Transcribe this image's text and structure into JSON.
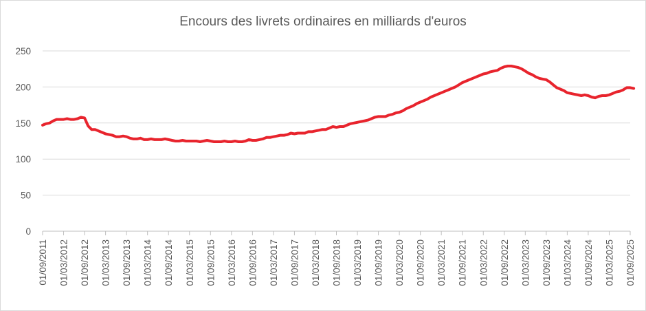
{
  "chart_data": {
    "type": "line",
    "title": "Encours des livrets ordinaires en milliards d'euros",
    "xlabel": "",
    "ylabel": "",
    "ylim": [
      0,
      250
    ],
    "yticks": [
      0,
      50,
      100,
      150,
      200,
      250
    ],
    "xticks": [
      "01/09/2011",
      "01/03/2012",
      "01/09/2012",
      "01/03/2013",
      "01/09/2013",
      "01/03/2014",
      "01/09/2014",
      "01/03/2015",
      "01/09/2015",
      "01/03/2016",
      "01/09/2016",
      "01/03/2017",
      "01/09/2017",
      "01/03/2018",
      "01/09/2018",
      "01/03/2019",
      "01/09/2019",
      "01/03/2020",
      "01/09/2020",
      "01/03/2021",
      "01/09/2021",
      "01/03/2022",
      "01/09/2022",
      "01/03/2023",
      "01/09/2023",
      "01/03/2024",
      "01/09/2024",
      "01/03/2025",
      "01/09/2025"
    ],
    "grid": true,
    "legend": "none",
    "color": "#e8242d",
    "series": [
      {
        "values": [
          {
            "x": "2011-09",
            "y": 147
          },
          {
            "x": "2011-10",
            "y": 149
          },
          {
            "x": "2011-11",
            "y": 150
          },
          {
            "x": "2011-12",
            "y": 153
          },
          {
            "x": "2012-01",
            "y": 155
          },
          {
            "x": "2012-02",
            "y": 155
          },
          {
            "x": "2012-03",
            "y": 155
          },
          {
            "x": "2012-04",
            "y": 156
          },
          {
            "x": "2012-05",
            "y": 155
          },
          {
            "x": "2012-06",
            "y": 155
          },
          {
            "x": "2012-07",
            "y": 156
          },
          {
            "x": "2012-08",
            "y": 158
          },
          {
            "x": "2012-09",
            "y": 157
          },
          {
            "x": "2012-10",
            "y": 146
          },
          {
            "x": "2012-11",
            "y": 141
          },
          {
            "x": "2012-12",
            "y": 141
          },
          {
            "x": "2013-01",
            "y": 139
          },
          {
            "x": "2013-02",
            "y": 137
          },
          {
            "x": "2013-03",
            "y": 135
          },
          {
            "x": "2013-04",
            "y": 134
          },
          {
            "x": "2013-05",
            "y": 133
          },
          {
            "x": "2013-06",
            "y": 131
          },
          {
            "x": "2013-07",
            "y": 131
          },
          {
            "x": "2013-08",
            "y": 132
          },
          {
            "x": "2013-09",
            "y": 131
          },
          {
            "x": "2013-10",
            "y": 129
          },
          {
            "x": "2013-11",
            "y": 128
          },
          {
            "x": "2013-12",
            "y": 128
          },
          {
            "x": "2014-01",
            "y": 129
          },
          {
            "x": "2014-02",
            "y": 127
          },
          {
            "x": "2014-03",
            "y": 127
          },
          {
            "x": "2014-04",
            "y": 128
          },
          {
            "x": "2014-05",
            "y": 127
          },
          {
            "x": "2014-06",
            "y": 127
          },
          {
            "x": "2014-07",
            "y": 127
          },
          {
            "x": "2014-08",
            "y": 128
          },
          {
            "x": "2014-09",
            "y": 127
          },
          {
            "x": "2014-10",
            "y": 126
          },
          {
            "x": "2014-11",
            "y": 125
          },
          {
            "x": "2014-12",
            "y": 125
          },
          {
            "x": "2015-01",
            "y": 126
          },
          {
            "x": "2015-02",
            "y": 125
          },
          {
            "x": "2015-03",
            "y": 125
          },
          {
            "x": "2015-04",
            "y": 125
          },
          {
            "x": "2015-05",
            "y": 125
          },
          {
            "x": "2015-06",
            "y": 124
          },
          {
            "x": "2015-07",
            "y": 125
          },
          {
            "x": "2015-08",
            "y": 126
          },
          {
            "x": "2015-09",
            "y": 125
          },
          {
            "x": "2015-10",
            "y": 124
          },
          {
            "x": "2015-11",
            "y": 124
          },
          {
            "x": "2015-12",
            "y": 124
          },
          {
            "x": "2016-01",
            "y": 125
          },
          {
            "x": "2016-02",
            "y": 124
          },
          {
            "x": "2016-03",
            "y": 124
          },
          {
            "x": "2016-04",
            "y": 125
          },
          {
            "x": "2016-05",
            "y": 124
          },
          {
            "x": "2016-06",
            "y": 124
          },
          {
            "x": "2016-07",
            "y": 125
          },
          {
            "x": "2016-08",
            "y": 127
          },
          {
            "x": "2016-09",
            "y": 126
          },
          {
            "x": "2016-10",
            "y": 126
          },
          {
            "x": "2016-11",
            "y": 127
          },
          {
            "x": "2016-12",
            "y": 128
          },
          {
            "x": "2017-01",
            "y": 130
          },
          {
            "x": "2017-02",
            "y": 130
          },
          {
            "x": "2017-03",
            "y": 131
          },
          {
            "x": "2017-04",
            "y": 132
          },
          {
            "x": "2017-05",
            "y": 133
          },
          {
            "x": "2017-06",
            "y": 133
          },
          {
            "x": "2017-07",
            "y": 134
          },
          {
            "x": "2017-08",
            "y": 136
          },
          {
            "x": "2017-09",
            "y": 135
          },
          {
            "x": "2017-10",
            "y": 136
          },
          {
            "x": "2017-11",
            "y": 136
          },
          {
            "x": "2017-12",
            "y": 136
          },
          {
            "x": "2018-01",
            "y": 138
          },
          {
            "x": "2018-02",
            "y": 138
          },
          {
            "x": "2018-03",
            "y": 139
          },
          {
            "x": "2018-04",
            "y": 140
          },
          {
            "x": "2018-05",
            "y": 141
          },
          {
            "x": "2018-06",
            "y": 141
          },
          {
            "x": "2018-07",
            "y": 143
          },
          {
            "x": "2018-08",
            "y": 145
          },
          {
            "x": "2018-09",
            "y": 144
          },
          {
            "x": "2018-10",
            "y": 145
          },
          {
            "x": "2018-11",
            "y": 145
          },
          {
            "x": "2018-12",
            "y": 147
          },
          {
            "x": "2019-01",
            "y": 149
          },
          {
            "x": "2019-02",
            "y": 150
          },
          {
            "x": "2019-03",
            "y": 151
          },
          {
            "x": "2019-04",
            "y": 152
          },
          {
            "x": "2019-05",
            "y": 153
          },
          {
            "x": "2019-06",
            "y": 154
          },
          {
            "x": "2019-07",
            "y": 156
          },
          {
            "x": "2019-08",
            "y": 158
          },
          {
            "x": "2019-09",
            "y": 159
          },
          {
            "x": "2019-10",
            "y": 159
          },
          {
            "x": "2019-11",
            "y": 159
          },
          {
            "x": "2019-12",
            "y": 161
          },
          {
            "x": "2020-01",
            "y": 162
          },
          {
            "x": "2020-02",
            "y": 164
          },
          {
            "x": "2020-03",
            "y": 165
          },
          {
            "x": "2020-04",
            "y": 167
          },
          {
            "x": "2020-05",
            "y": 170
          },
          {
            "x": "2020-06",
            "y": 172
          },
          {
            "x": "2020-07",
            "y": 174
          },
          {
            "x": "2020-08",
            "y": 177
          },
          {
            "x": "2020-09",
            "y": 179
          },
          {
            "x": "2020-10",
            "y": 181
          },
          {
            "x": "2020-11",
            "y": 183
          },
          {
            "x": "2020-12",
            "y": 186
          },
          {
            "x": "2021-01",
            "y": 188
          },
          {
            "x": "2021-02",
            "y": 190
          },
          {
            "x": "2021-03",
            "y": 192
          },
          {
            "x": "2021-04",
            "y": 194
          },
          {
            "x": "2021-05",
            "y": 196
          },
          {
            "x": "2021-06",
            "y": 198
          },
          {
            "x": "2021-07",
            "y": 200
          },
          {
            "x": "2021-08",
            "y": 203
          },
          {
            "x": "2021-09",
            "y": 206
          },
          {
            "x": "2021-10",
            "y": 208
          },
          {
            "x": "2021-11",
            "y": 210
          },
          {
            "x": "2021-12",
            "y": 212
          },
          {
            "x": "2022-01",
            "y": 214
          },
          {
            "x": "2022-02",
            "y": 216
          },
          {
            "x": "2022-03",
            "y": 218
          },
          {
            "x": "2022-04",
            "y": 219
          },
          {
            "x": "2022-05",
            "y": 221
          },
          {
            "x": "2022-06",
            "y": 222
          },
          {
            "x": "2022-07",
            "y": 223
          },
          {
            "x": "2022-08",
            "y": 226
          },
          {
            "x": "2022-09",
            "y": 228
          },
          {
            "x": "2022-10",
            "y": 229
          },
          {
            "x": "2022-11",
            "y": 229
          },
          {
            "x": "2022-12",
            "y": 228
          },
          {
            "x": "2023-01",
            "y": 227
          },
          {
            "x": "2023-02",
            "y": 225
          },
          {
            "x": "2023-03",
            "y": 222
          },
          {
            "x": "2023-04",
            "y": 219
          },
          {
            "x": "2023-05",
            "y": 217
          },
          {
            "x": "2023-06",
            "y": 214
          },
          {
            "x": "2023-07",
            "y": 212
          },
          {
            "x": "2023-08",
            "y": 211
          },
          {
            "x": "2023-09",
            "y": 210
          },
          {
            "x": "2023-10",
            "y": 207
          },
          {
            "x": "2023-11",
            "y": 203
          },
          {
            "x": "2023-12",
            "y": 199
          },
          {
            "x": "2024-01",
            "y": 197
          },
          {
            "x": "2024-02",
            "y": 195
          },
          {
            "x": "2024-03",
            "y": 192
          },
          {
            "x": "2024-04",
            "y": 191
          },
          {
            "x": "2024-05",
            "y": 190
          },
          {
            "x": "2024-06",
            "y": 189
          },
          {
            "x": "2024-07",
            "y": 188
          },
          {
            "x": "2024-08",
            "y": 189
          },
          {
            "x": "2024-09",
            "y": 188
          },
          {
            "x": "2024-10",
            "y": 186
          },
          {
            "x": "2024-11",
            "y": 185
          },
          {
            "x": "2024-12",
            "y": 187
          },
          {
            "x": "2025-01",
            "y": 188
          },
          {
            "x": "2025-02",
            "y": 188
          },
          {
            "x": "2025-03",
            "y": 189
          },
          {
            "x": "2025-04",
            "y": 191
          },
          {
            "x": "2025-05",
            "y": 193
          },
          {
            "x": "2025-06",
            "y": 194
          },
          {
            "x": "2025-07",
            "y": 196
          },
          {
            "x": "2025-08",
            "y": 199
          },
          {
            "x": "2025-09",
            "y": 199
          },
          {
            "x": "2025-10",
            "y": 198
          }
        ]
      }
    ]
  }
}
